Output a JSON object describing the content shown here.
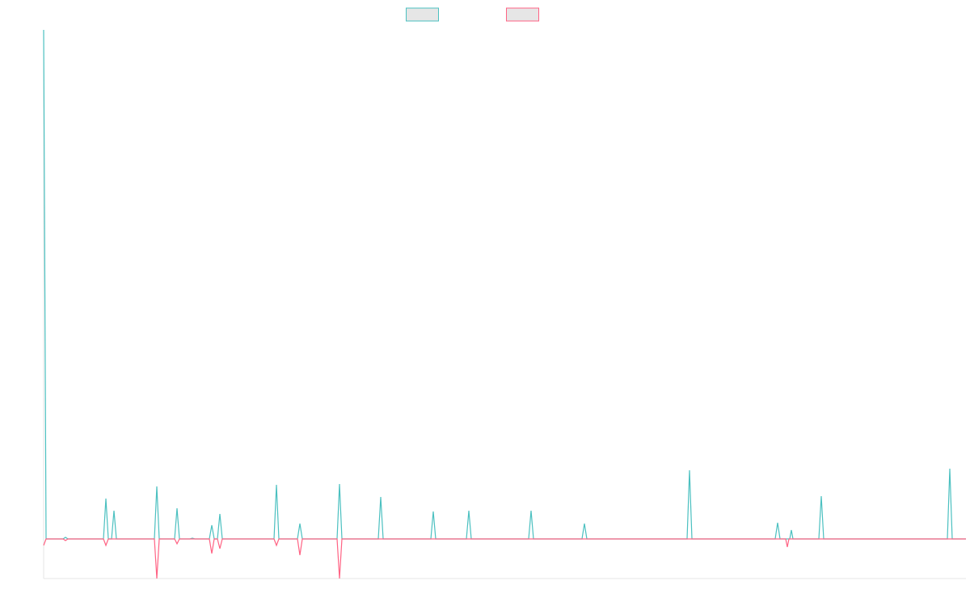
{
  "chart_data": {
    "type": "line",
    "legend": "top",
    "xlim": [
      0,
      1141
    ],
    "ylim": [
      -49,
      630
    ],
    "x": [
      0,
      3,
      24,
      27,
      30,
      74,
      77,
      80,
      84,
      87,
      90,
      137,
      140,
      143,
      162,
      165,
      168,
      181,
      184,
      187,
      205,
      208,
      211,
      215,
      218,
      221,
      285,
      288,
      291,
      314,
      317,
      320,
      363,
      366,
      369,
      414,
      417,
      420,
      479,
      482,
      485,
      523,
      526,
      529,
      600,
      603,
      606,
      666,
      669,
      672,
      796,
      799,
      802,
      905,
      908,
      911,
      918,
      920,
      922,
      923,
      925,
      927,
      959,
      962,
      965,
      1118,
      1121,
      1124,
      1141
    ],
    "series": [
      {
        "color": "#4bc0c0",
        "values": [
          630,
          0,
          0,
          2,
          0,
          0,
          50,
          0,
          0,
          35,
          0,
          0,
          65,
          0,
          0,
          38,
          0,
          0,
          1,
          0,
          0,
          17,
          0,
          0,
          31,
          0,
          0,
          67,
          0,
          0,
          19,
          0,
          0,
          68,
          0,
          0,
          52,
          0,
          0,
          34,
          0,
          0,
          35,
          0,
          0,
          35,
          0,
          0,
          19,
          0,
          0,
          85,
          0,
          0,
          20,
          0,
          0,
          0,
          0,
          0,
          11,
          0,
          0,
          53,
          0,
          0,
          87,
          0,
          0
        ]
      },
      {
        "color": "#ff6384",
        "values": [
          -8,
          0,
          0,
          -2,
          0,
          0,
          -8,
          0,
          0,
          0,
          0,
          0,
          -49,
          0,
          0,
          -6,
          0,
          0,
          0,
          0,
          0,
          -18,
          0,
          0,
          -12,
          0,
          0,
          -8,
          0,
          0,
          -20,
          0,
          0,
          -49,
          0,
          0,
          0,
          0,
          0,
          0,
          0,
          0,
          0,
          0,
          0,
          0,
          0,
          0,
          0,
          0,
          0,
          0,
          0,
          0,
          0,
          0,
          0,
          -10,
          0,
          0,
          0,
          0,
          0,
          0,
          0,
          0,
          0,
          0,
          0
        ]
      }
    ]
  }
}
